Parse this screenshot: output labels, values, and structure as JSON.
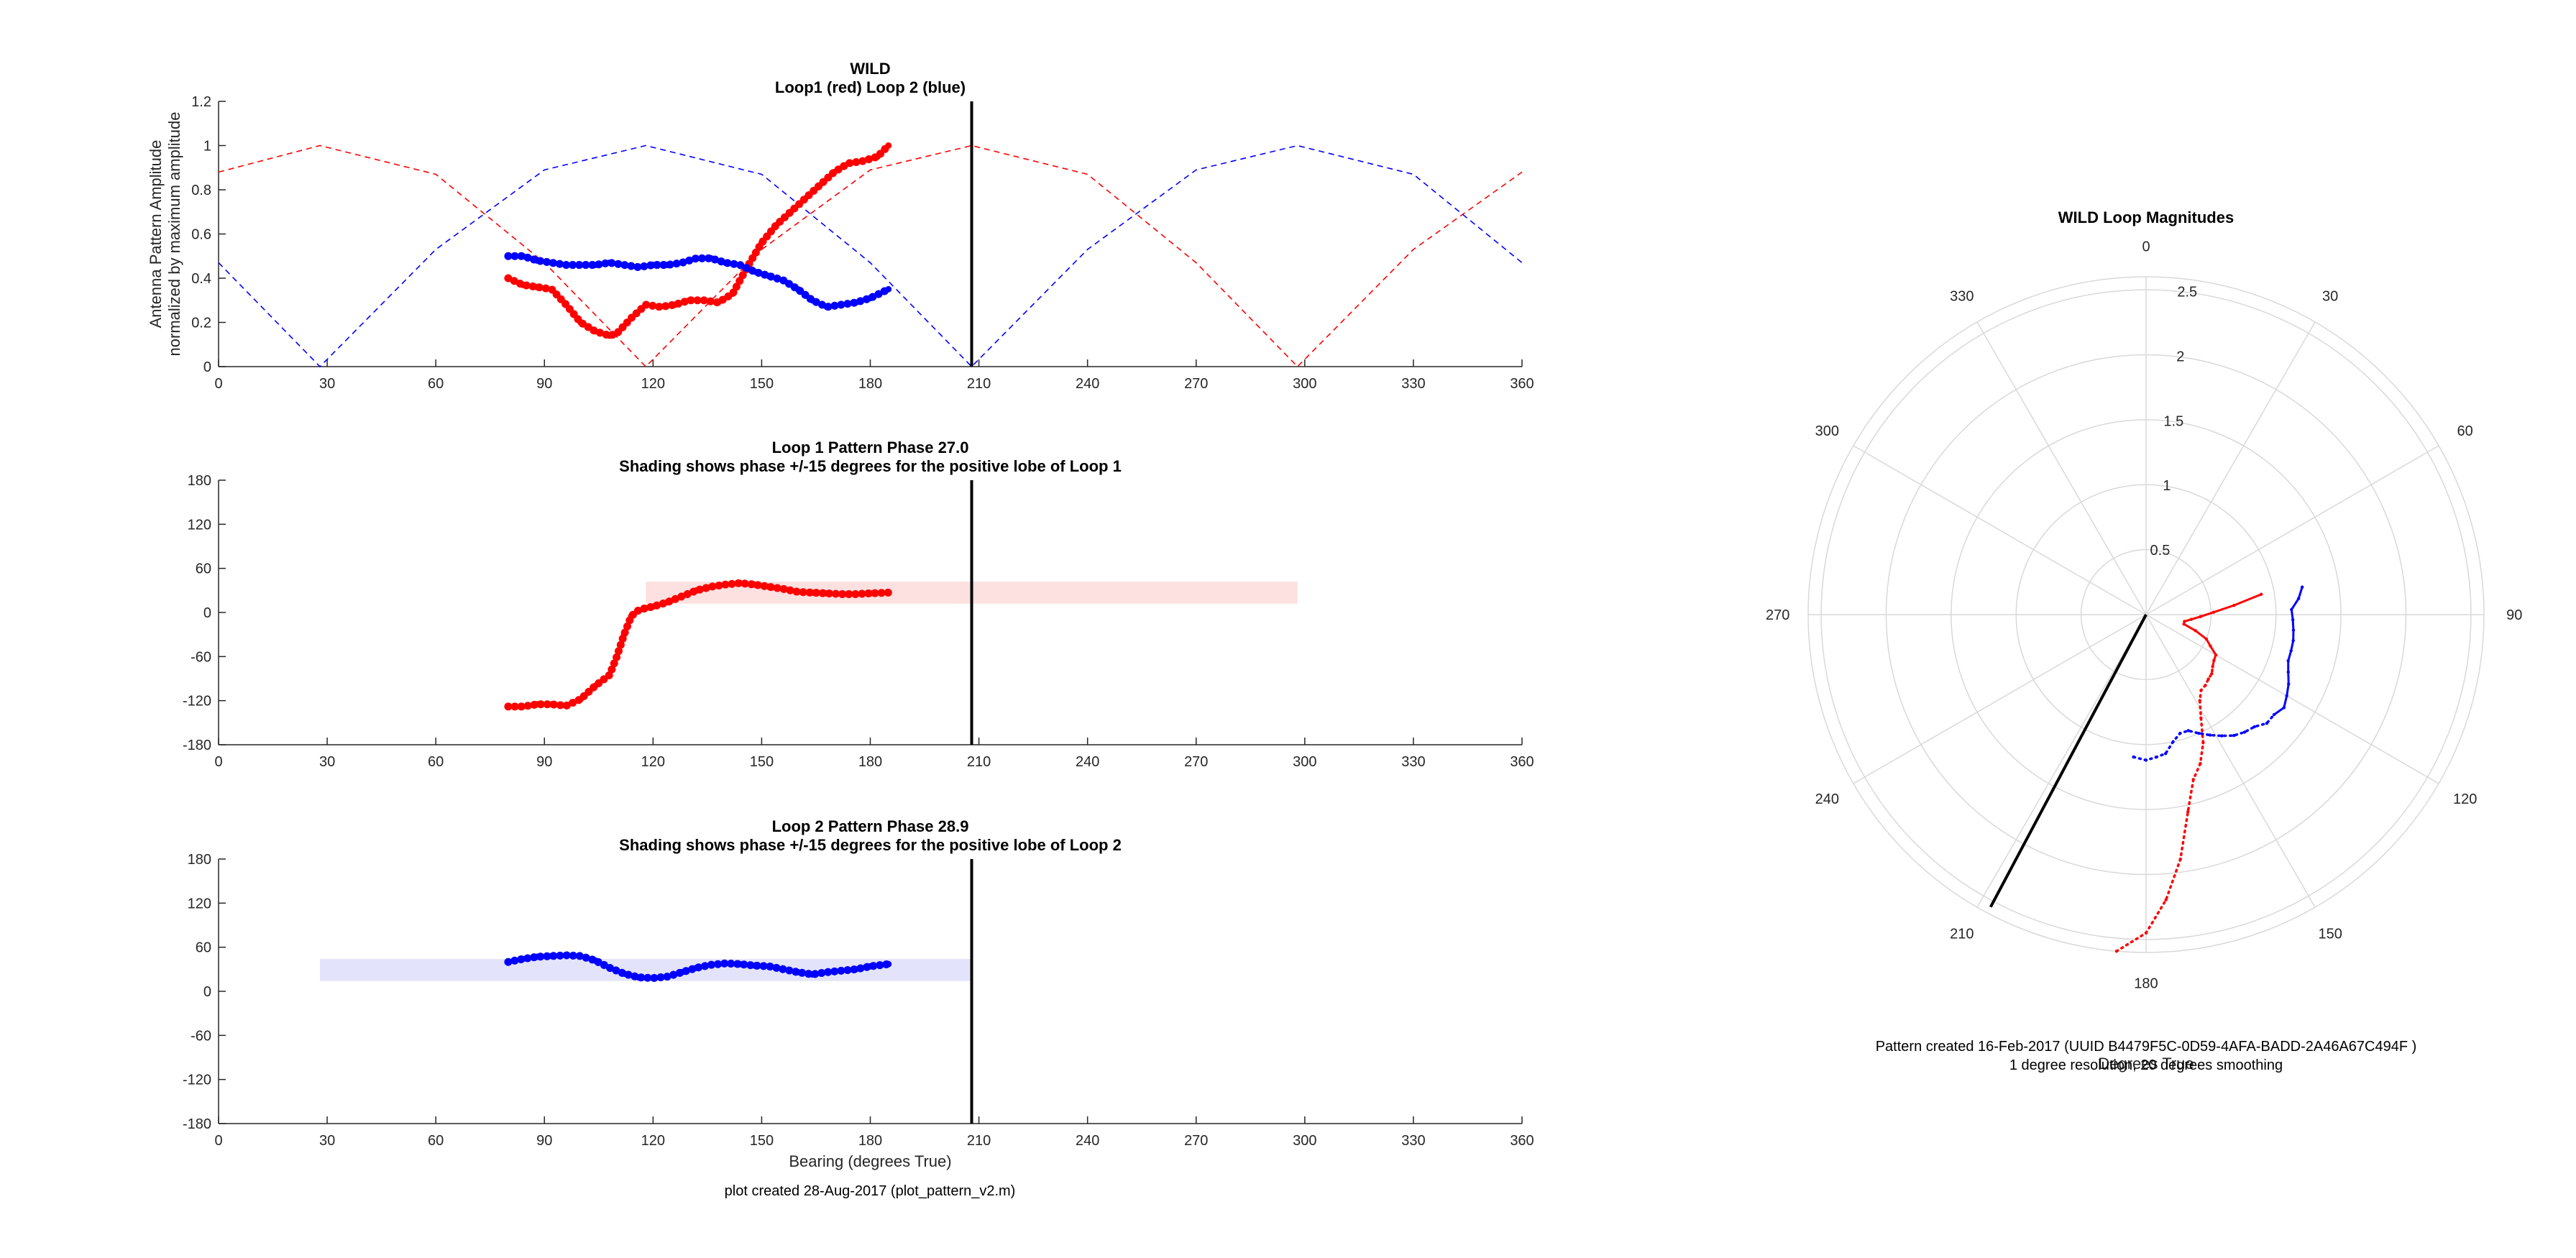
{
  "chart_data": [
    {
      "type": "line",
      "panel": "amplitude",
      "title": "WILD",
      "subtitle": "Loop1 (red) Loop 2 (blue)",
      "xlabel": "",
      "ylabel": "Antenna Pattern Amplitude",
      "ylabel2": "normalized by maximum amplitude",
      "xlim": [
        0,
        360
      ],
      "ylim": [
        0,
        1.2
      ],
      "xticks": [
        "0",
        "30",
        "60",
        "90",
        "120",
        "150",
        "180",
        "210",
        "240",
        "270",
        "300",
        "330",
        "360"
      ],
      "yticks": [
        "0",
        "0.2",
        "0.4",
        "0.6",
        "0.8",
        "1",
        "1.2"
      ],
      "vline_x": 208,
      "grid": false,
      "series": [
        {
          "style": "dashed",
          "color": "#ff0000",
          "x": [
            0,
            28,
            60,
            90,
            118,
            150,
            180,
            208,
            240,
            270,
            298,
            330,
            360
          ],
          "y": [
            0.88,
            1.0,
            0.87,
            0.47,
            0.0,
            0.53,
            0.89,
            1.0,
            0.87,
            0.47,
            0.0,
            0.53,
            0.88
          ]
        },
        {
          "style": "dashed",
          "color": "#0000ff",
          "x": [
            0,
            28,
            60,
            90,
            118,
            150,
            180,
            208,
            240,
            270,
            298,
            330,
            360
          ],
          "y": [
            0.47,
            0.0,
            0.53,
            0.89,
            1.0,
            0.87,
            0.47,
            0.0,
            0.53,
            0.89,
            1.0,
            0.87,
            0.47
          ]
        },
        {
          "style": "dots",
          "color": "#ff0000",
          "x": [
            80,
            84,
            88,
            92,
            96,
            100,
            104,
            108,
            110,
            114,
            118,
            122,
            126,
            130,
            134,
            138,
            142,
            146,
            150,
            154,
            158,
            162,
            166,
            170,
            174,
            178,
            182,
            185
          ],
          "y": [
            0.4,
            0.37,
            0.36,
            0.35,
            0.28,
            0.2,
            0.16,
            0.14,
            0.15,
            0.22,
            0.28,
            0.27,
            0.28,
            0.3,
            0.3,
            0.29,
            0.33,
            0.45,
            0.56,
            0.64,
            0.7,
            0.76,
            0.82,
            0.88,
            0.92,
            0.93,
            0.95,
            1.0
          ]
        },
        {
          "style": "dots",
          "color": "#0000ff",
          "x": [
            80,
            84,
            88,
            92,
            96,
            100,
            104,
            108,
            112,
            116,
            120,
            124,
            128,
            132,
            136,
            140,
            144,
            148,
            152,
            156,
            160,
            164,
            168,
            172,
            176,
            180,
            185
          ],
          "y": [
            0.5,
            0.5,
            0.48,
            0.47,
            0.46,
            0.46,
            0.46,
            0.47,
            0.46,
            0.45,
            0.46,
            0.46,
            0.47,
            0.49,
            0.49,
            0.47,
            0.46,
            0.43,
            0.41,
            0.39,
            0.35,
            0.3,
            0.27,
            0.28,
            0.29,
            0.31,
            0.35
          ]
        }
      ]
    },
    {
      "type": "scatter",
      "panel": "phase1",
      "title": "Loop 1 Pattern Phase 27.0",
      "subtitle": "Shading shows phase +/-15 degrees for the positive lobe of Loop 1",
      "xlim": [
        0,
        360
      ],
      "ylim": [
        -180,
        180
      ],
      "xticks": [
        "0",
        "30",
        "60",
        "90",
        "120",
        "150",
        "180",
        "210",
        "240",
        "270",
        "300",
        "330",
        "360"
      ],
      "yticks": [
        "-180",
        "-120",
        "-60",
        "0",
        "60",
        "120",
        "180"
      ],
      "vline_x": 208,
      "shade": {
        "x": [
          118,
          298
        ],
        "y": [
          12,
          42
        ],
        "color": "#fde0e0"
      },
      "series": [
        {
          "style": "dots",
          "color": "#ff0000",
          "x": [
            80,
            84,
            88,
            92,
            96,
            100,
            104,
            108,
            110,
            112,
            114,
            116,
            118,
            120,
            124,
            128,
            132,
            136,
            140,
            144,
            148,
            152,
            156,
            160,
            164,
            168,
            172,
            176,
            180,
            185
          ],
          "y": [
            -128,
            -128,
            -125,
            -125,
            -127,
            -118,
            -100,
            -85,
            -60,
            -30,
            -5,
            3,
            6,
            8,
            14,
            22,
            30,
            35,
            38,
            40,
            38,
            35,
            32,
            28,
            27,
            26,
            25,
            25,
            26,
            27
          ]
        }
      ]
    },
    {
      "type": "scatter",
      "panel": "phase2",
      "title": "Loop 2 Pattern Phase 28.9",
      "subtitle": "Shading shows phase +/-15 degrees for the positive lobe of Loop 2",
      "xlabel": "Bearing (degrees True)",
      "xlim": [
        0,
        360
      ],
      "ylim": [
        -180,
        180
      ],
      "xticks": [
        "0",
        "30",
        "60",
        "90",
        "120",
        "150",
        "180",
        "210",
        "240",
        "270",
        "300",
        "330",
        "360"
      ],
      "yticks": [
        "-180",
        "-120",
        "-60",
        "0",
        "60",
        "120",
        "180"
      ],
      "vline_x": 208,
      "shade": {
        "x": [
          28,
          208
        ],
        "y": [
          14,
          44
        ],
        "color": "#e3e3fb"
      },
      "series": [
        {
          "style": "dots",
          "color": "#0000ff",
          "x": [
            80,
            84,
            88,
            92,
            96,
            100,
            104,
            108,
            112,
            116,
            120,
            124,
            128,
            132,
            136,
            140,
            144,
            148,
            152,
            156,
            160,
            164,
            168,
            172,
            176,
            180,
            185
          ],
          "y": [
            40,
            44,
            47,
            48,
            49,
            48,
            42,
            32,
            24,
            19,
            18,
            20,
            26,
            32,
            36,
            38,
            37,
            35,
            34,
            30,
            26,
            23,
            26,
            28,
            30,
            34,
            37
          ]
        }
      ]
    },
    {
      "type": "polar",
      "panel": "magnitudes",
      "title": "WILD Loop Magnitudes",
      "xlabel": "Degrees True",
      "rlim": [
        0,
        2.6
      ],
      "rticks": [
        "0.5",
        "1",
        "1.5",
        "2",
        "2.5"
      ],
      "angle_ticks": [
        "0",
        "30",
        "60",
        "90",
        "120",
        "150",
        "180",
        "210",
        "240",
        "270",
        "300",
        "330"
      ],
      "bearing_line": {
        "angle": 208,
        "r": 2.6,
        "color": "#000000"
      },
      "series": [
        {
          "style": "dots+line",
          "color": "#ff0000",
          "theta": [
            185,
            180,
            176,
            172,
            168,
            164,
            160,
            156,
            152,
            148,
            144,
            140,
            136,
            132,
            128,
            124,
            120,
            116,
            112,
            108,
            104,
            100,
            96,
            92,
            88,
            84,
            80
          ],
          "r": [
            2.6,
            2.45,
            2.2,
            1.9,
            1.55,
            1.32,
            1.22,
            1.08,
            0.9,
            0.78,
            0.72,
            0.71,
            0.69,
            0.68,
            0.65,
            0.63,
            0.62,
            0.55,
            0.5,
            0.4,
            0.3,
            0.3,
            0.35,
            0.42,
            0.52,
            0.68,
            0.9
          ]
        },
        {
          "style": "dots+line",
          "color": "#0000ff",
          "theta": [
            185,
            180,
            176,
            172,
            168,
            164,
            160,
            156,
            152,
            148,
            144,
            140,
            136,
            132,
            128,
            124,
            120,
            116,
            112,
            108,
            104,
            100,
            96,
            92,
            88,
            84,
            80
          ],
          "r": [
            1.1,
            1.12,
            1.1,
            1.08,
            1.0,
            0.95,
            0.95,
            1.0,
            1.05,
            1.1,
            1.15,
            1.18,
            1.2,
            1.25,
            1.25,
            1.28,
            1.25,
            1.22,
            1.18,
            1.15,
            1.15,
            1.15,
            1.14,
            1.13,
            1.12,
            1.18,
            1.22
          ]
        }
      ]
    }
  ],
  "notes": {
    "plot_created": "plot created 28-Aug-2017 (plot_pattern_v2.m)",
    "pattern_created": "Pattern created 16-Feb-2017 (UUID B4479F5C-0D59-4AFA-BADD-2A46A67C494F )",
    "resolution": "1 degree resolution, 20 degrees smoothing"
  }
}
